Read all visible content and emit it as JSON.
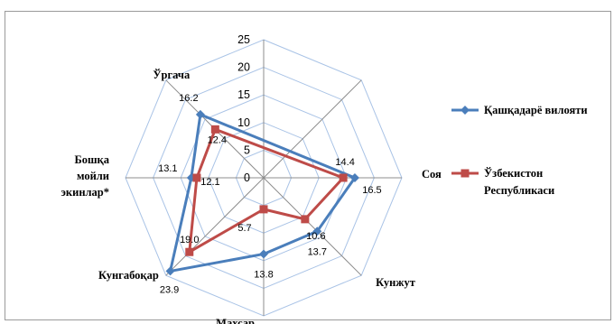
{
  "chart_data": {
    "type": "radar",
    "categories": [
      "",
      "",
      "Соя",
      "Кунжут",
      "Махсар",
      "Кунгабоқар",
      "Бошқа мойли экинлар*",
      "Ўргача"
    ],
    "category_lines": [
      [],
      [],
      [
        "Соя"
      ],
      [
        "Кунжут"
      ],
      [
        "Махсар"
      ],
      [
        "Кунгабоқар"
      ],
      [
        "Бошқа",
        "мойли",
        "экинлар*"
      ],
      [
        "Ўргача"
      ]
    ],
    "ticks": [
      "0",
      "5",
      "10",
      "15",
      "20",
      "25"
    ],
    "rlim": [
      0,
      25
    ],
    "series": [
      {
        "name": "Қашқадарё вилояти",
        "color": "#4a7ebb",
        "marker": "diamond",
        "values": [
          null,
          null,
          16.5,
          13.7,
          13.8,
          23.9,
          13.1,
          16.2
        ],
        "labels": [
          "",
          "",
          "16.5",
          "13.7",
          "13.8",
          "23.9",
          "13.1",
          "16.2"
        ]
      },
      {
        "name": "Ўзбекистон Республикаси",
        "color": "#be4b48",
        "marker": "square",
        "values": [
          null,
          null,
          14.4,
          10.6,
          5.7,
          19.0,
          12.1,
          12.4
        ],
        "labels": [
          "",
          "",
          "14.4",
          "10.6",
          "5.7",
          "19.0",
          "12.1",
          "12.4"
        ]
      }
    ],
    "legend": {
      "position": "right",
      "entries": [
        [
          "Қашқадарё   вилояти"
        ],
        [
          "Ўзбекистон",
          "Республикаси"
        ]
      ]
    }
  }
}
